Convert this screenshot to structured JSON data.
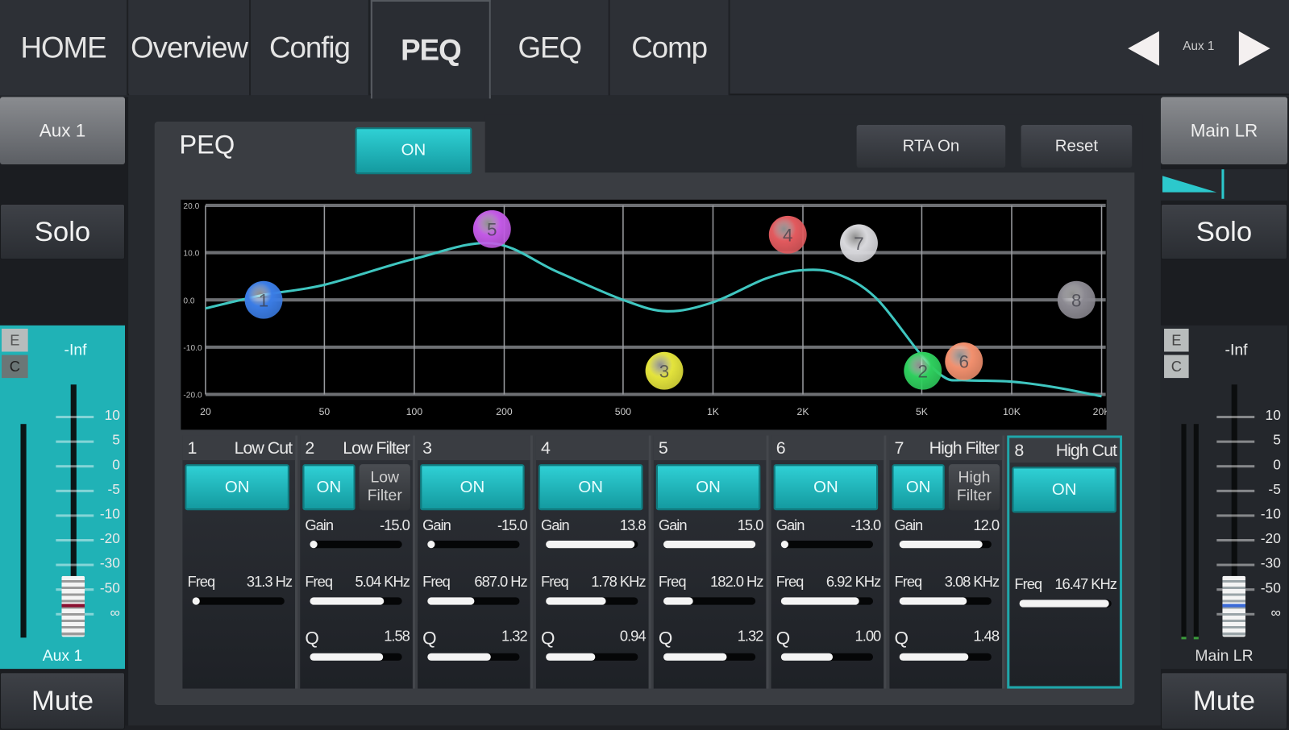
{
  "nav": {
    "tabs": [
      {
        "label": "HOME",
        "selected": false
      },
      {
        "label": "Overview",
        "selected": false
      },
      {
        "label": "Config",
        "selected": false
      },
      {
        "label": "PEQ",
        "selected": true
      },
      {
        "label": "GEQ",
        "selected": false
      },
      {
        "label": "Comp",
        "selected": false
      }
    ],
    "channel_label": "Aux 1",
    "prev_icon": "triangle-left-icon",
    "next_icon": "triangle-right-icon"
  },
  "left_strip": {
    "channel_button": "Aux 1",
    "solo": "Solo",
    "mute": "Mute",
    "e_label": "E",
    "c_label": "C",
    "fader_top": "-Inf",
    "fader_name": "Aux 1",
    "scale": [
      "10",
      "5",
      "0",
      "-5",
      "-10",
      "-20",
      "-30",
      "-50",
      "∞"
    ],
    "panel_color": "#20b2b6"
  },
  "right_strip": {
    "channel_button": "Main LR",
    "solo": "Solo",
    "mute": "Mute",
    "e_label": "E",
    "c_label": "C",
    "fader_top": "-Inf",
    "fader_name": "Main LR",
    "scale": [
      "10",
      "5",
      "0",
      "-5",
      "-10",
      "-20",
      "-30",
      "-50",
      "∞"
    ]
  },
  "peq": {
    "title": "PEQ",
    "on_label": "ON",
    "rta_label": "RTA On",
    "reset_label": "Reset",
    "accent": "#1fb8bd"
  },
  "chart_data": {
    "type": "line",
    "x_scale": "log",
    "xlim": [
      20,
      20000
    ],
    "ylim": [
      -20,
      20
    ],
    "x_ticks": [
      {
        "v": 20,
        "label": "20"
      },
      {
        "v": 50,
        "label": "50"
      },
      {
        "v": 100,
        "label": "100"
      },
      {
        "v": 200,
        "label": "200"
      },
      {
        "v": 500,
        "label": "500"
      },
      {
        "v": 1000,
        "label": "1K"
      },
      {
        "v": 2000,
        "label": "2K"
      },
      {
        "v": 5000,
        "label": "5K"
      },
      {
        "v": 10000,
        "label": "10K"
      },
      {
        "v": 20000,
        "label": "20K"
      }
    ],
    "y_ticks": [
      {
        "v": 20,
        "label": "20.0"
      },
      {
        "v": 10,
        "label": "10.0"
      },
      {
        "v": 0,
        "label": "0.0"
      },
      {
        "v": -10,
        "label": "-10.0"
      },
      {
        "v": -20,
        "label": "-20.0"
      }
    ],
    "grid": true,
    "curve_color": "#3fc6c0",
    "response_curve": [
      [
        20,
        -1.8
      ],
      [
        31,
        1.0
      ],
      [
        50,
        3.2
      ],
      [
        100,
        8.7
      ],
      [
        182,
        12.0
      ],
      [
        300,
        6.0
      ],
      [
        500,
        0.0
      ],
      [
        700,
        -2.4
      ],
      [
        1000,
        -0.5
      ],
      [
        1500,
        4.5
      ],
      [
        2000,
        6.3
      ],
      [
        2600,
        5.5
      ],
      [
        3500,
        0.5
      ],
      [
        5000,
        -11.8
      ],
      [
        6000,
        -16.5
      ],
      [
        7000,
        -17.0
      ],
      [
        10000,
        -17.3
      ],
      [
        14000,
        -18.5
      ],
      [
        20000,
        -20.4
      ]
    ],
    "nodes": [
      {
        "label": "1",
        "freq": 31.3,
        "gain": 0,
        "color": "#3b7de6"
      },
      {
        "label": "2",
        "freq": 5040,
        "gain": -15,
        "color": "#2fcf5e"
      },
      {
        "label": "3",
        "freq": 687,
        "gain": -15,
        "color": "#e4e43c"
      },
      {
        "label": "4",
        "freq": 1780,
        "gain": 13.8,
        "color": "#e25a5e"
      },
      {
        "label": "5",
        "freq": 182,
        "gain": 15,
        "color": "#c35ae6"
      },
      {
        "label": "6",
        "freq": 6920,
        "gain": -13,
        "color": "#f2906e"
      },
      {
        "label": "7",
        "freq": 3080,
        "gain": 12,
        "color": "#d8d8dc"
      },
      {
        "label": "8",
        "freq": 16470,
        "gain": 0,
        "color": "#8c8a92"
      }
    ]
  },
  "bands": [
    {
      "num": "1",
      "type": "Low Cut",
      "on": "ON",
      "freq_label": "Freq",
      "freq": "31.3 Hz",
      "freq_hz": 31.3
    },
    {
      "num": "2",
      "type": "Low Filter",
      "on": "ON",
      "type_button": "Low Filter",
      "gain_label": "Gain",
      "gain": "-15.0",
      "gain_db": -15,
      "freq_label": "Freq",
      "freq": "5.04 KHz",
      "freq_hz": 5040,
      "q_label": "Q",
      "q": "1.58",
      "q_val": 1.58
    },
    {
      "num": "3",
      "type": "",
      "on": "ON",
      "gain_label": "Gain",
      "gain": "-15.0",
      "gain_db": -15,
      "freq_label": "Freq",
      "freq": "687.0 Hz",
      "freq_hz": 687,
      "q_label": "Q",
      "q": "1.32",
      "q_val": 1.32
    },
    {
      "num": "4",
      "type": "",
      "on": "ON",
      "gain_label": "Gain",
      "gain": "13.8",
      "gain_db": 13.8,
      "freq_label": "Freq",
      "freq": "1.78 KHz",
      "freq_hz": 1780,
      "q_label": "Q",
      "q": "0.94",
      "q_val": 0.94
    },
    {
      "num": "5",
      "type": "",
      "on": "ON",
      "gain_label": "Gain",
      "gain": "15.0",
      "gain_db": 15,
      "freq_label": "Freq",
      "freq": "182.0 Hz",
      "freq_hz": 182,
      "q_label": "Q",
      "q": "1.32",
      "q_val": 1.32
    },
    {
      "num": "6",
      "type": "",
      "on": "ON",
      "gain_label": "Gain",
      "gain": "-13.0",
      "gain_db": -13,
      "freq_label": "Freq",
      "freq": "6.92 KHz",
      "freq_hz": 6920,
      "q_label": "Q",
      "q": "1.00",
      "q_val": 1.0
    },
    {
      "num": "7",
      "type": "High Filter",
      "on": "ON",
      "type_button": "High Filter",
      "gain_label": "Gain",
      "gain": "12.0",
      "gain_db": 12,
      "freq_label": "Freq",
      "freq": "3.08 KHz",
      "freq_hz": 3080,
      "q_label": "Q",
      "q": "1.48",
      "q_val": 1.48
    },
    {
      "num": "8",
      "type": "High Cut",
      "on": "ON",
      "freq_label": "Freq",
      "freq": "16.47 KHz",
      "freq_hz": 16470,
      "selected": true
    }
  ]
}
